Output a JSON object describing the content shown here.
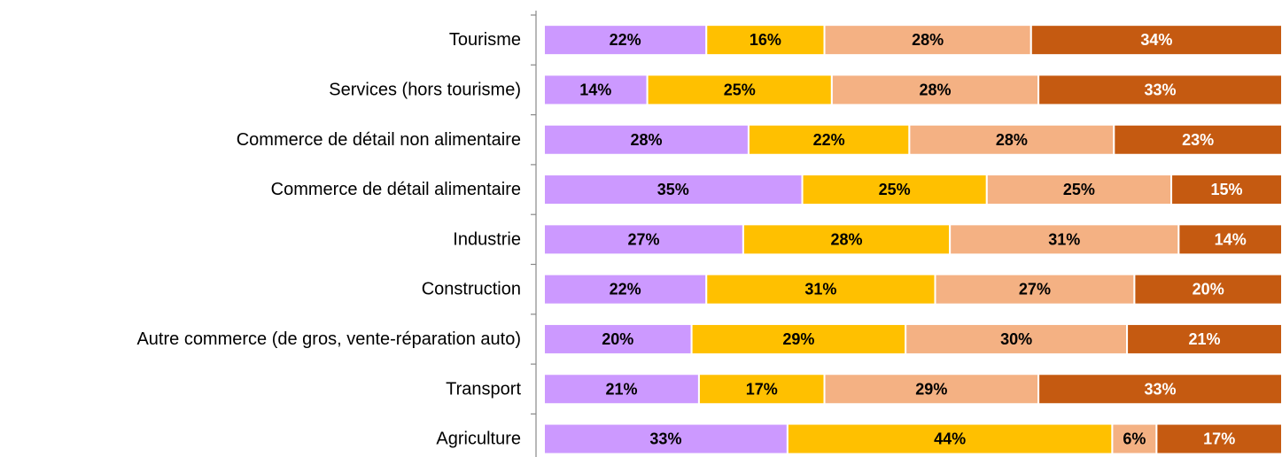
{
  "chart_data": {
    "type": "stacked_bar_horizontal",
    "categories": [
      "Tourisme",
      "Services (hors tourisme)",
      "Commerce de détail non alimentaire",
      "Commerce de détail alimentaire",
      "Industrie",
      "Construction",
      "Autre commerce (de gros, vente-réparation auto)",
      "Transport",
      "Agriculture"
    ],
    "series": [
      {
        "color": "#cc99ff",
        "label_color": "#000000",
        "values": [
          22,
          14,
          28,
          35,
          27,
          22,
          20,
          21,
          33
        ],
        "value_labels": [
          "22%",
          "14%",
          "28%",
          "35%",
          "27%",
          "22%",
          "20%",
          "21%",
          "33%"
        ]
      },
      {
        "color": "#ffc000",
        "label_color": "#000000",
        "values": [
          16,
          25,
          22,
          25,
          28,
          31,
          29,
          17,
          44
        ],
        "value_labels": [
          "16%",
          "25%",
          "22%",
          "25%",
          "28%",
          "31%",
          "29%",
          "17%",
          "44%"
        ]
      },
      {
        "color": "#f4b183",
        "label_color": "#000000",
        "values": [
          28,
          28,
          28,
          25,
          31,
          27,
          30,
          29,
          6
        ],
        "value_labels": [
          "28%",
          "28%",
          "28%",
          "25%",
          "31%",
          "27%",
          "30%",
          "29%",
          "6%"
        ]
      },
      {
        "color": "#c55a11",
        "label_color": "#ffffff",
        "values": [
          34,
          33,
          23,
          15,
          14,
          20,
          21,
          33,
          17
        ],
        "value_labels": [
          "34%",
          "33%",
          "23%",
          "15%",
          "14%",
          "20%",
          "21%",
          "33%",
          "17%"
        ]
      }
    ]
  }
}
